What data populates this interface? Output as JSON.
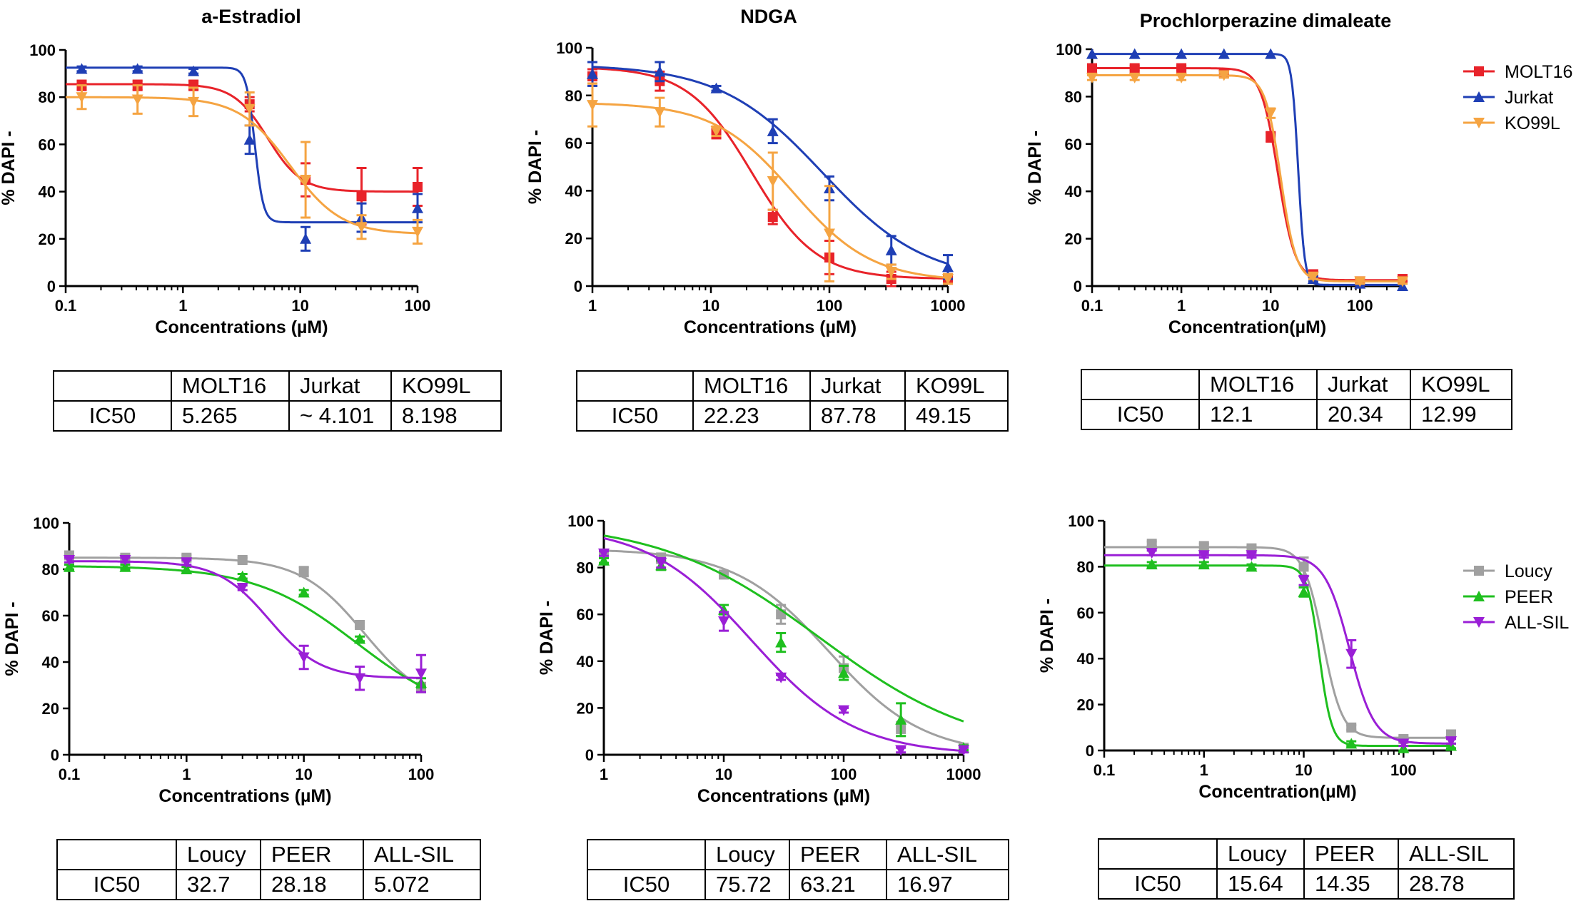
{
  "chart_data": [
    {
      "type": "line",
      "title": "a-Estradiol",
      "xlabel": "Concentrations (µM)",
      "ylabel": "% DAPI -",
      "xscale": "log",
      "xlim": [
        0.1,
        100
      ],
      "ylim": [
        0,
        100
      ],
      "xticks": [
        "0.1",
        "1",
        "10",
        "100"
      ],
      "yticks": [
        "0",
        "20",
        "40",
        "60",
        "80",
        "100"
      ],
      "series": [
        {
          "name": "MOLT16",
          "color": "#e8232a",
          "marker": "square",
          "x": [
            0.137,
            0.41,
            1.23,
            3.7,
            11.1,
            33.3,
            100
          ],
          "y": [
            85,
            85,
            85,
            77,
            45,
            38,
            42
          ],
          "err": [
            2,
            2,
            2,
            3,
            7,
            12,
            8
          ],
          "fit": {
            "bottom": 40,
            "top": 85.5,
            "ec50": 5.265,
            "hill": 3
          }
        },
        {
          "name": "Jurkat",
          "color": "#1f3fb5",
          "marker": "triangle-up",
          "x": [
            0.137,
            0.41,
            1.23,
            3.7,
            11.1,
            33.3,
            100
          ],
          "y": [
            92,
            92,
            91,
            62,
            20,
            29,
            33
          ],
          "err": [
            1,
            1,
            1,
            6,
            5,
            6,
            6
          ],
          "fit": {
            "bottom": 27,
            "top": 92.5,
            "ec50": 4.101,
            "hill": 12
          }
        },
        {
          "name": "KO99L",
          "color": "#f5a442",
          "marker": "triangle-down",
          "x": [
            0.137,
            0.41,
            1.23,
            3.7,
            11.1,
            33.3,
            100
          ],
          "y": [
            80,
            79,
            78,
            75,
            45,
            25,
            23
          ],
          "err": [
            5,
            6,
            6,
            7,
            16,
            5,
            5
          ],
          "fit": {
            "bottom": 22,
            "top": 80,
            "ec50": 8.198,
            "hill": 2
          }
        }
      ],
      "table": {
        "header": [
          "",
          "MOLT16",
          "Jurkat",
          "KO99L"
        ],
        "row_label": "IC50",
        "values": [
          "5.265",
          "~ 4.101",
          "8.198"
        ]
      }
    },
    {
      "type": "line",
      "title": "NDGA",
      "xlabel": "Concentrations (µM)",
      "ylabel": "% DAPI -",
      "xscale": "log",
      "xlim": [
        1,
        1000
      ],
      "ylim": [
        0,
        100
      ],
      "xticks": [
        "1",
        "10",
        "100",
        "1000"
      ],
      "yticks": [
        "0",
        "20",
        "40",
        "60",
        "80",
        "100"
      ],
      "series": [
        {
          "name": "MOLT16",
          "color": "#e8232a",
          "marker": "square",
          "x": [
            1,
            3.7,
            11.1,
            33.3,
            100,
            333,
            1000
          ],
          "y": [
            88,
            86,
            64,
            29,
            12,
            3,
            3
          ],
          "err": [
            3,
            4,
            2,
            3,
            7,
            3,
            2
          ],
          "fit": {
            "bottom": 3,
            "top": 92,
            "ec50": 22.23,
            "hill": 1.6
          }
        },
        {
          "name": "Jurkat",
          "color": "#1f3fb5",
          "marker": "triangle-up",
          "x": [
            1,
            3.7,
            11.1,
            33.3,
            100,
            333,
            1000
          ],
          "y": [
            89,
            90,
            83,
            65,
            41,
            15,
            8
          ],
          "err": [
            5,
            4,
            1,
            5,
            5,
            6,
            5
          ],
          "fit": {
            "bottom": 2,
            "top": 93,
            "ec50": 87.78,
            "hill": 1.0
          }
        },
        {
          "name": "KO99L",
          "color": "#f5a442",
          "marker": "triangle-down",
          "x": [
            1,
            3.7,
            11.1,
            33.3,
            100,
            333,
            1000
          ],
          "y": [
            76,
            73,
            65,
            44,
            22,
            6,
            3
          ],
          "err": [
            9,
            6,
            2,
            12,
            20,
            3,
            2
          ],
          "fit": {
            "bottom": 2,
            "top": 77,
            "ec50": 49.15,
            "hill": 1.3
          }
        }
      ],
      "table": {
        "header": [
          "",
          "MOLT16",
          "Jurkat",
          "KO99L"
        ],
        "row_label": "IC50",
        "values": [
          "22.23",
          "87.78",
          "49.15"
        ]
      }
    },
    {
      "type": "line",
      "title": "Prochlorperazine dimaleate",
      "xlabel": "Concentration(µM)",
      "ylabel": "% DAPI -",
      "xscale": "log",
      "xlim": [
        0.1,
        300
      ],
      "ylim": [
        0,
        100
      ],
      "xticks": [
        "0.1",
        "1",
        "10",
        "100"
      ],
      "yticks": [
        "0",
        "20",
        "40",
        "60",
        "80",
        "100"
      ],
      "legend": {
        "position": "top-right",
        "entries": [
          "MOLT16",
          "Jurkat",
          "KO99L"
        ]
      },
      "series": [
        {
          "name": "MOLT16",
          "color": "#e8232a",
          "marker": "square",
          "x": [
            0.1,
            0.3,
            1,
            3,
            10,
            30,
            100,
            300
          ],
          "y": [
            92,
            92,
            92,
            90,
            63,
            5,
            2,
            3
          ],
          "err": [
            1,
            1,
            1,
            1,
            2,
            1,
            1,
            1
          ],
          "fit": {
            "bottom": 2.5,
            "top": 92,
            "ec50": 12.1,
            "hill": 4.5
          }
        },
        {
          "name": "Jurkat",
          "color": "#1f3fb5",
          "marker": "triangle-up",
          "x": [
            0.1,
            0.3,
            1,
            3,
            10,
            30,
            100,
            300
          ],
          "y": [
            98,
            98,
            98,
            98,
            98,
            3,
            1,
            0
          ],
          "err": [
            0,
            0,
            0,
            0,
            0,
            1,
            0,
            0
          ],
          "fit": {
            "bottom": 0.5,
            "top": 98,
            "ec50": 20.34,
            "hill": 12
          }
        },
        {
          "name": "KO99L",
          "color": "#f5a442",
          "marker": "triangle-down",
          "x": [
            0.1,
            0.3,
            1,
            3,
            10,
            30,
            100,
            300
          ],
          "y": [
            88,
            88,
            88,
            89,
            73,
            4,
            2,
            2
          ],
          "err": [
            1,
            1,
            1,
            1,
            2,
            1,
            1,
            1
          ],
          "fit": {
            "bottom": 2,
            "top": 89,
            "ec50": 12.99,
            "hill": 5
          }
        }
      ],
      "table": {
        "header": [
          "",
          "MOLT16",
          "Jurkat",
          "KO99L"
        ],
        "row_label": "IC50",
        "values": [
          "12.1",
          "20.34",
          "12.99"
        ]
      }
    },
    {
      "type": "line",
      "title": "",
      "xlabel": "Concentrations (µM)",
      "ylabel": "% DAPI -",
      "xscale": "log",
      "xlim": [
        0.1,
        100
      ],
      "ylim": [
        0,
        100
      ],
      "xticks": [
        "0.1",
        "1",
        "10",
        "100"
      ],
      "yticks": [
        "0",
        "20",
        "40",
        "60",
        "80",
        "100"
      ],
      "series": [
        {
          "name": "Loucy",
          "color": "#a0a0a0",
          "marker": "square",
          "x": [
            0.1,
            0.3,
            1,
            3,
            10,
            30,
            100
          ],
          "y": [
            86,
            85,
            85,
            84,
            79,
            56,
            29
          ],
          "err": [
            1,
            1,
            1,
            1,
            2,
            1,
            2
          ],
          "fit": {
            "bottom": 20,
            "top": 85,
            "ec50": 32.7,
            "hill": 1.6
          }
        },
        {
          "name": "PEER",
          "color": "#1fbf1f",
          "marker": "triangle-up",
          "x": [
            0.1,
            0.3,
            1,
            3,
            10,
            30,
            100
          ],
          "y": [
            81,
            81,
            80,
            77,
            70,
            50,
            31
          ],
          "err": [
            1,
            1,
            1,
            1,
            1,
            1,
            2
          ],
          "fit": {
            "bottom": 15,
            "top": 81.5,
            "ec50": 28.18,
            "hill": 1.0
          }
        },
        {
          "name": "ALL-SIL",
          "color": "#9a1fd6",
          "marker": "triangle-down",
          "x": [
            0.1,
            0.3,
            1,
            3,
            10,
            30,
            100
          ],
          "y": [
            84,
            84,
            83,
            72,
            42,
            33,
            35
          ],
          "err": [
            1,
            1,
            1,
            1,
            5,
            5,
            8
          ],
          "fit": {
            "bottom": 33,
            "top": 83.5,
            "ec50": 5.072,
            "hill": 2
          }
        }
      ],
      "table": {
        "header": [
          "",
          "Loucy",
          "PEER",
          "ALL-SIL"
        ],
        "row_label": "IC50",
        "values": [
          "32.7",
          "28.18",
          "5.072"
        ]
      }
    },
    {
      "type": "line",
      "title": "",
      "xlabel": "Concentrations (µM)",
      "ylabel": "% DAPI -",
      "xscale": "log",
      "xlim": [
        1,
        1000
      ],
      "ylim": [
        0,
        100
      ],
      "xticks": [
        "1",
        "10",
        "100",
        "1000"
      ],
      "yticks": [
        "0",
        "20",
        "40",
        "60",
        "80",
        "100"
      ],
      "series": [
        {
          "name": "Loucy",
          "color": "#a0a0a0",
          "marker": "square",
          "x": [
            1,
            3,
            10,
            30,
            100,
            300,
            1000
          ],
          "y": [
            86,
            84,
            77,
            60,
            37,
            11,
            3
          ],
          "err": [
            1,
            2,
            1,
            4,
            5,
            3,
            1
          ],
          "fit": {
            "bottom": 0,
            "top": 88,
            "ec50": 75.72,
            "hill": 1.1
          }
        },
        {
          "name": "PEER",
          "color": "#1fbf1f",
          "marker": "triangle-up",
          "x": [
            1,
            3,
            10,
            30,
            100,
            300,
            1000
          ],
          "y": [
            83,
            81,
            62,
            48,
            35,
            15,
            3
          ],
          "err": [
            1,
            2,
            2,
            4,
            3,
            7,
            1
          ],
          "fit": {
            "bottom": 0,
            "top": 100,
            "ec50": 63.21,
            "hill": 0.65
          }
        },
        {
          "name": "ALL-SIL",
          "color": "#9a1fd6",
          "marker": "triangle-down",
          "x": [
            1,
            3,
            10,
            30,
            100,
            300,
            1000
          ],
          "y": [
            86,
            82,
            57,
            33,
            19,
            2,
            2
          ],
          "err": [
            1,
            2,
            4,
            1,
            1,
            1,
            1
          ],
          "fit": {
            "bottom": 0,
            "top": 98,
            "ec50": 16.97,
            "hill": 1.0
          }
        }
      ],
      "table": {
        "header": [
          "",
          "Loucy",
          "PEER",
          "ALL-SIL"
        ],
        "row_label": "IC50",
        "values": [
          "75.72",
          "63.21",
          "16.97"
        ]
      }
    },
    {
      "type": "line",
      "title": "",
      "xlabel": "Concentration(µM)",
      "ylabel": "% DAPI -",
      "xscale": "log",
      "xlim": [
        0.1,
        300
      ],
      "ylim": [
        0,
        100
      ],
      "xticks": [
        "0.1",
        "1",
        "10",
        "100"
      ],
      "yticks": [
        "0",
        "20",
        "40",
        "60",
        "80",
        "100"
      ],
      "legend": {
        "position": "top-right",
        "entries": [
          "Loucy",
          "PEER",
          "ALL-SIL"
        ]
      },
      "series": [
        {
          "name": "Loucy",
          "color": "#a0a0a0",
          "marker": "square",
          "x": [
            0.3,
            1,
            3,
            10,
            30,
            100,
            300
          ],
          "y": [
            90,
            89,
            88,
            80,
            10,
            5,
            7
          ],
          "err": [
            1,
            1,
            1,
            4,
            1,
            1,
            1
          ],
          "fit": {
            "bottom": 5.5,
            "top": 88.5,
            "ec50": 15.64,
            "hill": 4.5
          }
        },
        {
          "name": "PEER",
          "color": "#1fbf1f",
          "marker": "triangle-up",
          "x": [
            0.3,
            1,
            3,
            10,
            30,
            100,
            300
          ],
          "y": [
            81,
            81,
            80,
            69,
            3,
            1,
            2
          ],
          "err": [
            1,
            1,
            1,
            2,
            1,
            1,
            1
          ],
          "fit": {
            "bottom": 2,
            "top": 80.5,
            "ec50": 14.35,
            "hill": 7
          }
        },
        {
          "name": "ALL-SIL",
          "color": "#9a1fd6",
          "marker": "triangle-down",
          "x": [
            0.3,
            1,
            3,
            10,
            30,
            100,
            300
          ],
          "y": [
            86,
            85,
            85,
            74,
            42,
            3,
            4
          ],
          "err": [
            1,
            1,
            1,
            2,
            6,
            1,
            1
          ],
          "fit": {
            "bottom": 3,
            "top": 85,
            "ec50": 28.78,
            "hill": 3.5
          }
        }
      ],
      "table": {
        "header": [
          "",
          "Loucy",
          "PEER",
          "ALL-SIL"
        ],
        "row_label": "IC50",
        "values": [
          "15.64",
          "14.35",
          "28.78"
        ]
      }
    }
  ]
}
